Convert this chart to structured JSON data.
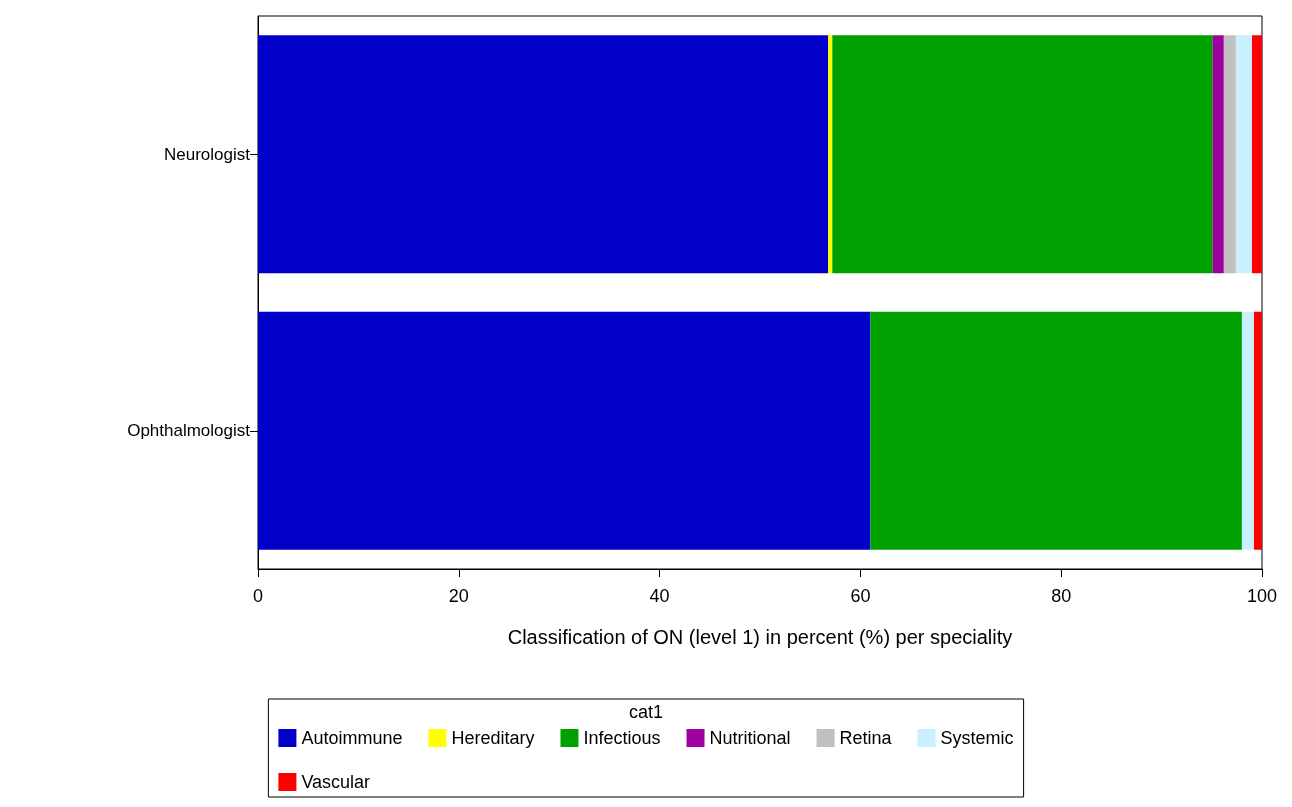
{
  "chart_data": {
    "type": "bar",
    "orientation": "horizontal",
    "stacked": true,
    "categories": [
      "Neurologist",
      "Ophthalmologist"
    ],
    "series": [
      {
        "name": "Autoimmune",
        "color": "#0000c8",
        "values": [
          56.8,
          61.0
        ]
      },
      {
        "name": "Hereditary",
        "color": "#ffff00",
        "values": [
          0.4,
          0
        ]
      },
      {
        "name": "Infectious",
        "color": "#00a000",
        "values": [
          37.9,
          37.0
        ]
      },
      {
        "name": "Nutritional",
        "color": "#a000a0",
        "values": [
          1.1,
          0
        ]
      },
      {
        "name": "Retina",
        "color": "#c0c0c0",
        "values": [
          1.2,
          0
        ]
      },
      {
        "name": "Systemic",
        "color": "#c8f0ff",
        "values": [
          1.6,
          1.2
        ]
      },
      {
        "name": "Vascular",
        "color": "#ff0000",
        "values": [
          1.0,
          0.8
        ]
      }
    ],
    "xlim": [
      0,
      100
    ],
    "xticks": [
      0,
      20,
      40,
      60,
      80,
      100
    ],
    "xlabel": "Classification of ON (level 1) in percent (%) per speciality",
    "legend_title": "cat1",
    "legend": "bottom",
    "grid": false
  }
}
